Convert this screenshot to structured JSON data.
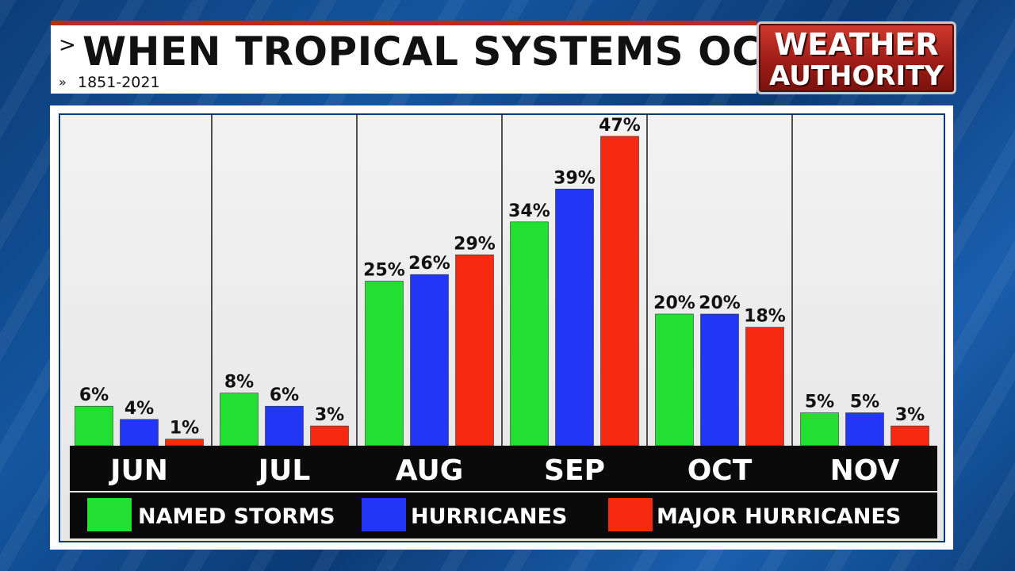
{
  "header": {
    "title": "WHEN TROPICAL SYSTEMS OCCUR",
    "title_chevron": ">",
    "subtitle": "1851-2021",
    "subtitle_chevron": "»"
  },
  "logo": {
    "line1": "WEATHER",
    "line2": "AUTHORITY"
  },
  "colors": {
    "named_storms": "#22e032",
    "hurricanes": "#2236f5",
    "major_hurricanes": "#f52a10",
    "label_band": "#0a0a0a",
    "divider": "#1a1a1a"
  },
  "chart_data": {
    "type": "bar",
    "categories": [
      "JUN",
      "JUL",
      "AUG",
      "SEP",
      "OCT",
      "NOV"
    ],
    "series": [
      {
        "name": "NAMED STORMS",
        "color": "#22e032",
        "values": [
          6,
          8,
          25,
          34,
          20,
          5
        ],
        "labels": [
          "6%",
          "8%",
          "25%",
          "34%",
          "20%",
          "5%"
        ]
      },
      {
        "name": "HURRICANES",
        "color": "#2236f5",
        "values": [
          4,
          6,
          26,
          39,
          20,
          5
        ],
        "labels": [
          "4%",
          "6%",
          "26%",
          "39%",
          "20%",
          "5%"
        ]
      },
      {
        "name": "MAJOR HURRICANES",
        "color": "#f52a10",
        "values": [
          1,
          3,
          29,
          47,
          18,
          3
        ],
        "labels": [
          "1%",
          "3%",
          "29%",
          "47%",
          "18%",
          "3%"
        ]
      }
    ],
    "unit": "%",
    "ylim": [
      0,
      50
    ],
    "legend": "bottom",
    "grid": false
  }
}
